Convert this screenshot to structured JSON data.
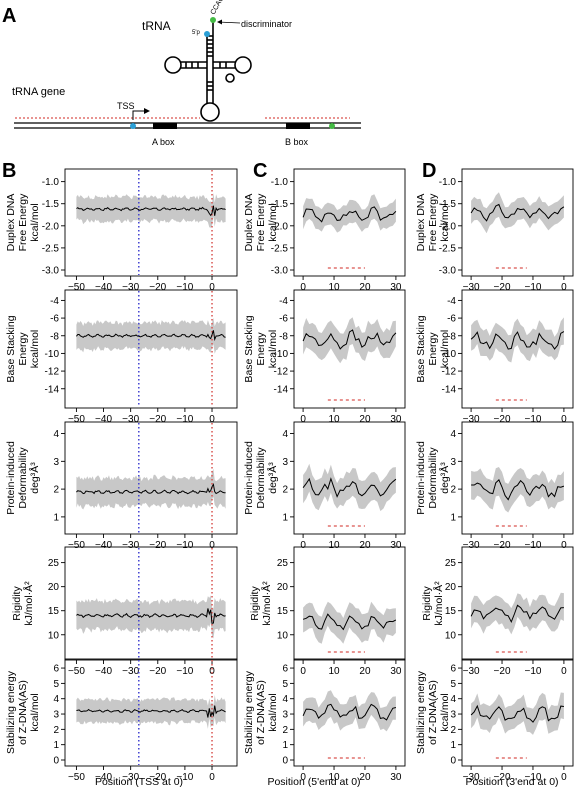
{
  "panel_labels": {
    "a": "A",
    "b": "B",
    "c": "C",
    "d": "D"
  },
  "diagram": {
    "trna_label": "tRNA",
    "gene_label": "tRNA gene",
    "five_p": "5'p",
    "cca": "CCAOH3'",
    "discriminator": "discriminator",
    "tss": "TSS",
    "a_box": "A box",
    "b_box": "B box",
    "colors": {
      "tss_marker": "#2a9fd6",
      "discriminator_marker": "#44bb44",
      "dashed_line": "#d9534f"
    }
  },
  "row_labels": [
    [
      "Duplex DNA",
      "Free Energy",
      "kcal/mol"
    ],
    [
      "Base Stacking",
      "Energy",
      "kcal/mol"
    ],
    [
      "Protein-induced",
      "Deformability",
      "deg³Å³"
    ],
    [
      "Rigidity",
      "kJ/mol·Å²"
    ],
    [
      "Stabilizing energy",
      "of Z-DNA(AS)",
      "kcal/mol"
    ]
  ],
  "x_labels": {
    "b": "Position (TSS at 0)",
    "c": "Position (5'end at 0)",
    "d": "Position (3'end at 0)"
  },
  "x_ticks": {
    "b": [
      -50,
      -40,
      -30,
      -20,
      -10,
      0
    ],
    "c": [
      0,
      10,
      20,
      30
    ],
    "d": [
      -30,
      -20,
      -10,
      0
    ]
  },
  "y_ticks": [
    [
      -1.0,
      -1.5,
      -2.0,
      -2.5,
      -3.0
    ],
    [
      -4,
      -6,
      -8,
      -10,
      -12,
      -14
    ],
    [
      1,
      2,
      3,
      4
    ],
    [
      10,
      15,
      20,
      25
    ],
    [
      0,
      1,
      2,
      3,
      4,
      5,
      6
    ]
  ],
  "chart_data": {
    "type": "line",
    "x_ranges": {
      "b": [
        -52,
        7
      ],
      "c": [
        -1,
        31
      ],
      "d": [
        -31,
        1
      ]
    },
    "reference_lines": {
      "b": {
        "blue_dotted": -27,
        "red_dotted": 0
      }
    },
    "band_color": "#c8c8c8",
    "line_color": "#000000",
    "rows": [
      {
        "ylim": [
          -3.0,
          -0.85
        ],
        "b_mean": -1.62,
        "b_band": 0.55,
        "c_mean": -1.75,
        "c_band": 0.5,
        "d_mean": -1.7,
        "d_band": 0.5
      },
      {
        "ylim": [
          -15.5,
          -3.5
        ],
        "b_mean": -8.0,
        "b_band": 3.0,
        "c_mean": -8.5,
        "c_band": 3.2,
        "d_mean": -8.6,
        "d_band": 3.0
      },
      {
        "ylim": [
          0.6,
          4.2
        ],
        "b_mean": 1.9,
        "b_band": 1.0,
        "c_mean": 2.0,
        "c_band": 1.0,
        "d_mean": 2.0,
        "d_band": 1.0
      },
      {
        "ylim": [
          6,
          27
        ],
        "b_mean": 14.0,
        "b_band": 6.0,
        "c_mean": 12.5,
        "c_band": 5.5,
        "d_mean": 14.5,
        "d_band": 5.5
      },
      {
        "ylim": [
          0,
          6.2
        ],
        "b_mean": 3.2,
        "b_band": 1.5,
        "c_mean": 3.1,
        "c_band": 1.6,
        "d_mean": 3.0,
        "d_band": 1.6
      }
    ]
  }
}
